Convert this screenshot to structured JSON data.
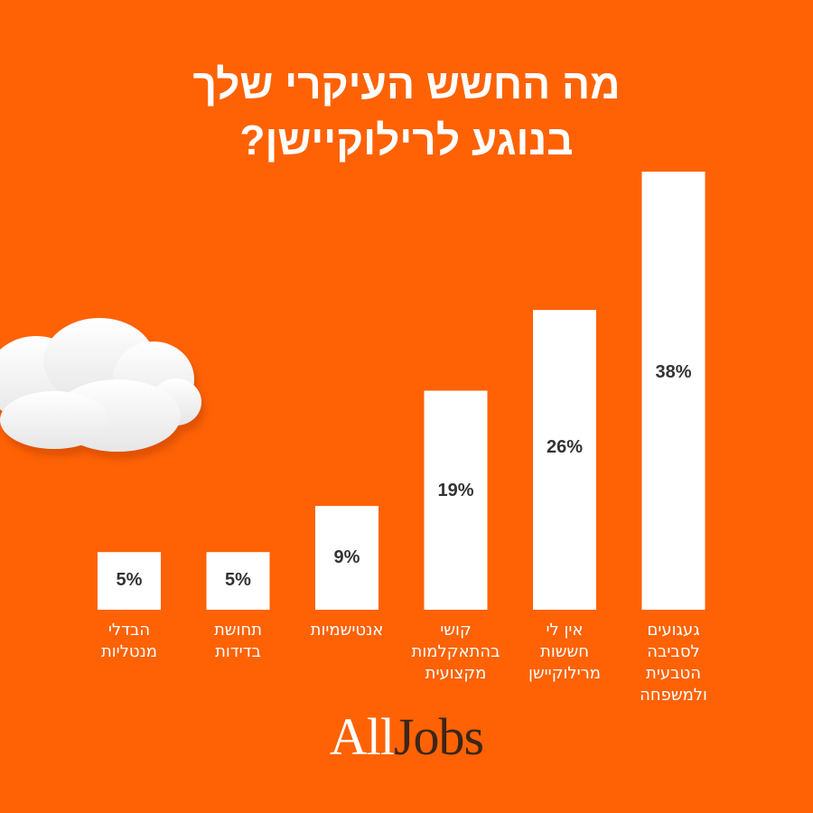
{
  "chart_data": {
    "type": "bar",
    "title": "מה החשש העיקרי שלך\nבנוגע לרילוקיישן?",
    "categories": [
      "הבדלי\nמנטליות",
      "תחושת\nבדידות",
      "אנטישמיות",
      "קושי\nבהתאקלמות\nמקצועית",
      "אין לי\nחששות\nמרילוקיישן",
      "געגועים\nלסביבה\nהטבעית\nולמשפחה"
    ],
    "values": [
      5,
      5,
      9,
      19,
      26,
      38
    ],
    "value_labels": [
      "5%",
      "5%",
      "9%",
      "19%",
      "26%",
      "38%"
    ],
    "color": "#ffffff"
  },
  "brand": [
    "All",
    "Jobs"
  ]
}
